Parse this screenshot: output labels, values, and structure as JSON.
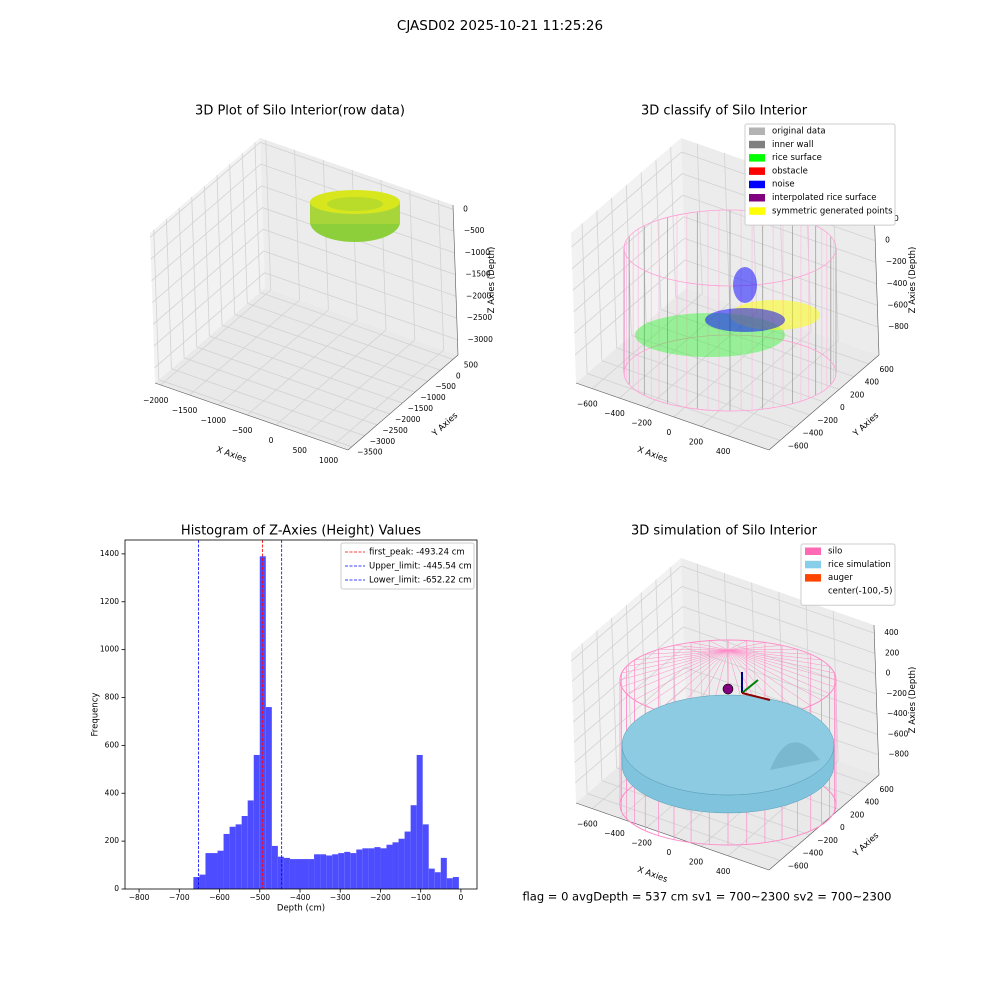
{
  "title": "CJASD02 2025-10-21 11:25:26",
  "footer": "flag = 0     avgDepth = 537 cm  sv1 = 700~2300  sv2 = 700~2300",
  "chart_data": [
    {
      "type": "scatter3d",
      "title": "3D Plot of Silo Interior(row data)",
      "x_label": "X Axies",
      "y_label": "Y Axies",
      "z_label": "Z Axies (Depth)",
      "xlim": [
        -2100,
        1250
      ],
      "ylim": [
        -3650,
        700
      ],
      "zlim": [
        -3350,
        100
      ],
      "xticks": [
        {
          "value": -2000,
          "label": "−2000"
        },
        {
          "value": -1500,
          "label": "−1500"
        },
        {
          "value": -1000,
          "label": "−1000"
        },
        {
          "value": -500,
          "label": "−500"
        },
        0,
        500,
        1000
      ],
      "yticks": [
        500,
        0,
        {
          "value": -500,
          "label": "−500"
        },
        {
          "value": -1000,
          "label": "−1000"
        },
        {
          "value": -1500,
          "label": "−1500"
        },
        {
          "value": -2000,
          "label": "−2000"
        },
        {
          "value": -2500,
          "label": "−2500"
        },
        {
          "value": -3000,
          "label": "−3000"
        },
        {
          "value": -3500,
          "label": "−3500"
        }
      ],
      "zticks": [
        0,
        {
          "value": -500,
          "label": "−500"
        },
        {
          "value": -1000,
          "label": "−1000"
        },
        {
          "value": -1500,
          "label": "−1500"
        },
        {
          "value": -2000,
          "label": "−2000"
        },
        {
          "value": -2500,
          "label": "−2500"
        },
        {
          "value": -3000,
          "label": "−3000"
        }
      ]
    },
    {
      "type": "scatter3d",
      "title": "3D classify of Silo Interior",
      "x_label": "X Axies",
      "y_label": "Y Axies",
      "z_label": "Z Axies (Depth)",
      "xlim": [
        -720,
        700
      ],
      "ylim": [
        -750,
        740
      ],
      "zlim": [
        -1060,
        330
      ],
      "xticks": [
        {
          "value": -600,
          "label": "−600"
        },
        {
          "value": -400,
          "label": "−400"
        },
        {
          "value": -200,
          "label": "−200"
        },
        0,
        200,
        400
      ],
      "yticks": [
        600,
        400,
        200,
        0,
        {
          "value": -200,
          "label": "−200"
        },
        {
          "value": -400,
          "label": "−400"
        },
        {
          "value": -600,
          "label": "−600"
        }
      ],
      "zticks": [
        200,
        0,
        {
          "value": -200,
          "label": "−200"
        },
        {
          "value": -400,
          "label": "−400"
        },
        {
          "value": -600,
          "label": "−600"
        },
        {
          "value": -800,
          "label": "−800"
        }
      ],
      "legend_loc": "upper right",
      "legend": [
        {
          "name": "original data",
          "color": "#b3b3b3"
        },
        {
          "name": "inner wall",
          "color": "#808080"
        },
        {
          "name": "rice surface",
          "color": "#00ff00"
        },
        {
          "name": "obstacle",
          "color": "#ff0000"
        },
        {
          "name": "noise",
          "color": "#0000ff"
        },
        {
          "name": "interpolated rice surface",
          "color": "#800080"
        },
        {
          "name": "symmetric generated points",
          "color": "#ffff00"
        }
      ]
    },
    {
      "type": "histogram",
      "title": "Histogram of Z-Axies (Height) Values",
      "x_label": "Depth (cm)",
      "y_label": "Frequency",
      "color": "#4d4dff",
      "bins": [
        -665,
        -650,
        -635,
        -620,
        -605,
        -590,
        -575,
        -560,
        -545,
        -530,
        -515,
        -500,
        -485,
        -470,
        -455,
        -440,
        -425,
        -410,
        -395,
        -380,
        -365,
        -350,
        -335,
        -320,
        -305,
        -290,
        -275,
        -260,
        -245,
        -230,
        -215,
        -200,
        -185,
        -170,
        -155,
        -140,
        -125,
        -110,
        -95,
        -80,
        -65,
        -50,
        -35,
        -20,
        -5
      ],
      "counts": [
        50,
        60,
        150,
        150,
        160,
        230,
        260,
        270,
        305,
        370,
        560,
        1390,
        760,
        180,
        135,
        130,
        125,
        125,
        125,
        125,
        145,
        145,
        140,
        145,
        150,
        155,
        150,
        165,
        170,
        170,
        175,
        170,
        185,
        195,
        210,
        240,
        350,
        560,
        270,
        85,
        70,
        130,
        45,
        50
      ],
      "xlim": [
        -835,
        40
      ],
      "ylim": [
        0,
        1458
      ],
      "xticks": [
        {
          "value": -800,
          "label": "−800"
        },
        {
          "value": -700,
          "label": "−700"
        },
        {
          "value": -600,
          "label": "−600"
        },
        {
          "value": -500,
          "label": "−500"
        },
        {
          "value": -400,
          "label": "−400"
        },
        {
          "value": -300,
          "label": "−300"
        },
        {
          "value": -200,
          "label": "−200"
        },
        {
          "value": -100,
          "label": "−100"
        },
        0
      ],
      "yticks": [
        0,
        200,
        400,
        600,
        800,
        1000,
        1200,
        1400
      ],
      "legend_loc": "upper right",
      "vlines": [
        {
          "name": "first_peak: -493.24 cm",
          "value": -493.24,
          "color": "#ff0000"
        },
        {
          "name": "Upper_limit: -445.54 cm",
          "value": -445.54,
          "color": "#0000ff"
        },
        {
          "name": "Lower_limit: -652.22 cm",
          "value": -652.22,
          "color": "#0000ff"
        }
      ]
    },
    {
      "type": "surface3d",
      "title": "3D simulation of Silo Interior",
      "x_label": "X Axies",
      "y_label": "Y Axies",
      "z_label": "Z Axies (Depth)",
      "xlim": [
        -720,
        700
      ],
      "ylim": [
        -750,
        740
      ],
      "zlim": [
        -1000,
        480
      ],
      "xticks": [
        {
          "value": -600,
          "label": "−600"
        },
        {
          "value": -400,
          "label": "−400"
        },
        {
          "value": -200,
          "label": "−200"
        },
        0,
        200,
        400
      ],
      "yticks": [
        600,
        400,
        200,
        0,
        {
          "value": -200,
          "label": "−200"
        },
        {
          "value": -400,
          "label": "−400"
        },
        {
          "value": -600,
          "label": "−600"
        }
      ],
      "zticks": [
        400,
        200,
        0,
        {
          "value": -200,
          "label": "−200"
        },
        {
          "value": -400,
          "label": "−400"
        },
        {
          "value": -600,
          "label": "−600"
        },
        {
          "value": -800,
          "label": "−800"
        }
      ],
      "legend_loc": "upper right",
      "legend": [
        {
          "name": "silo",
          "color": "#ff69b4"
        },
        {
          "name": "rice simulation",
          "color": "#87ceeb"
        },
        {
          "name": "auger",
          "color": "#ff4500"
        },
        {
          "name": "center(-100,-5)",
          "color": "#ffffff"
        }
      ]
    }
  ]
}
